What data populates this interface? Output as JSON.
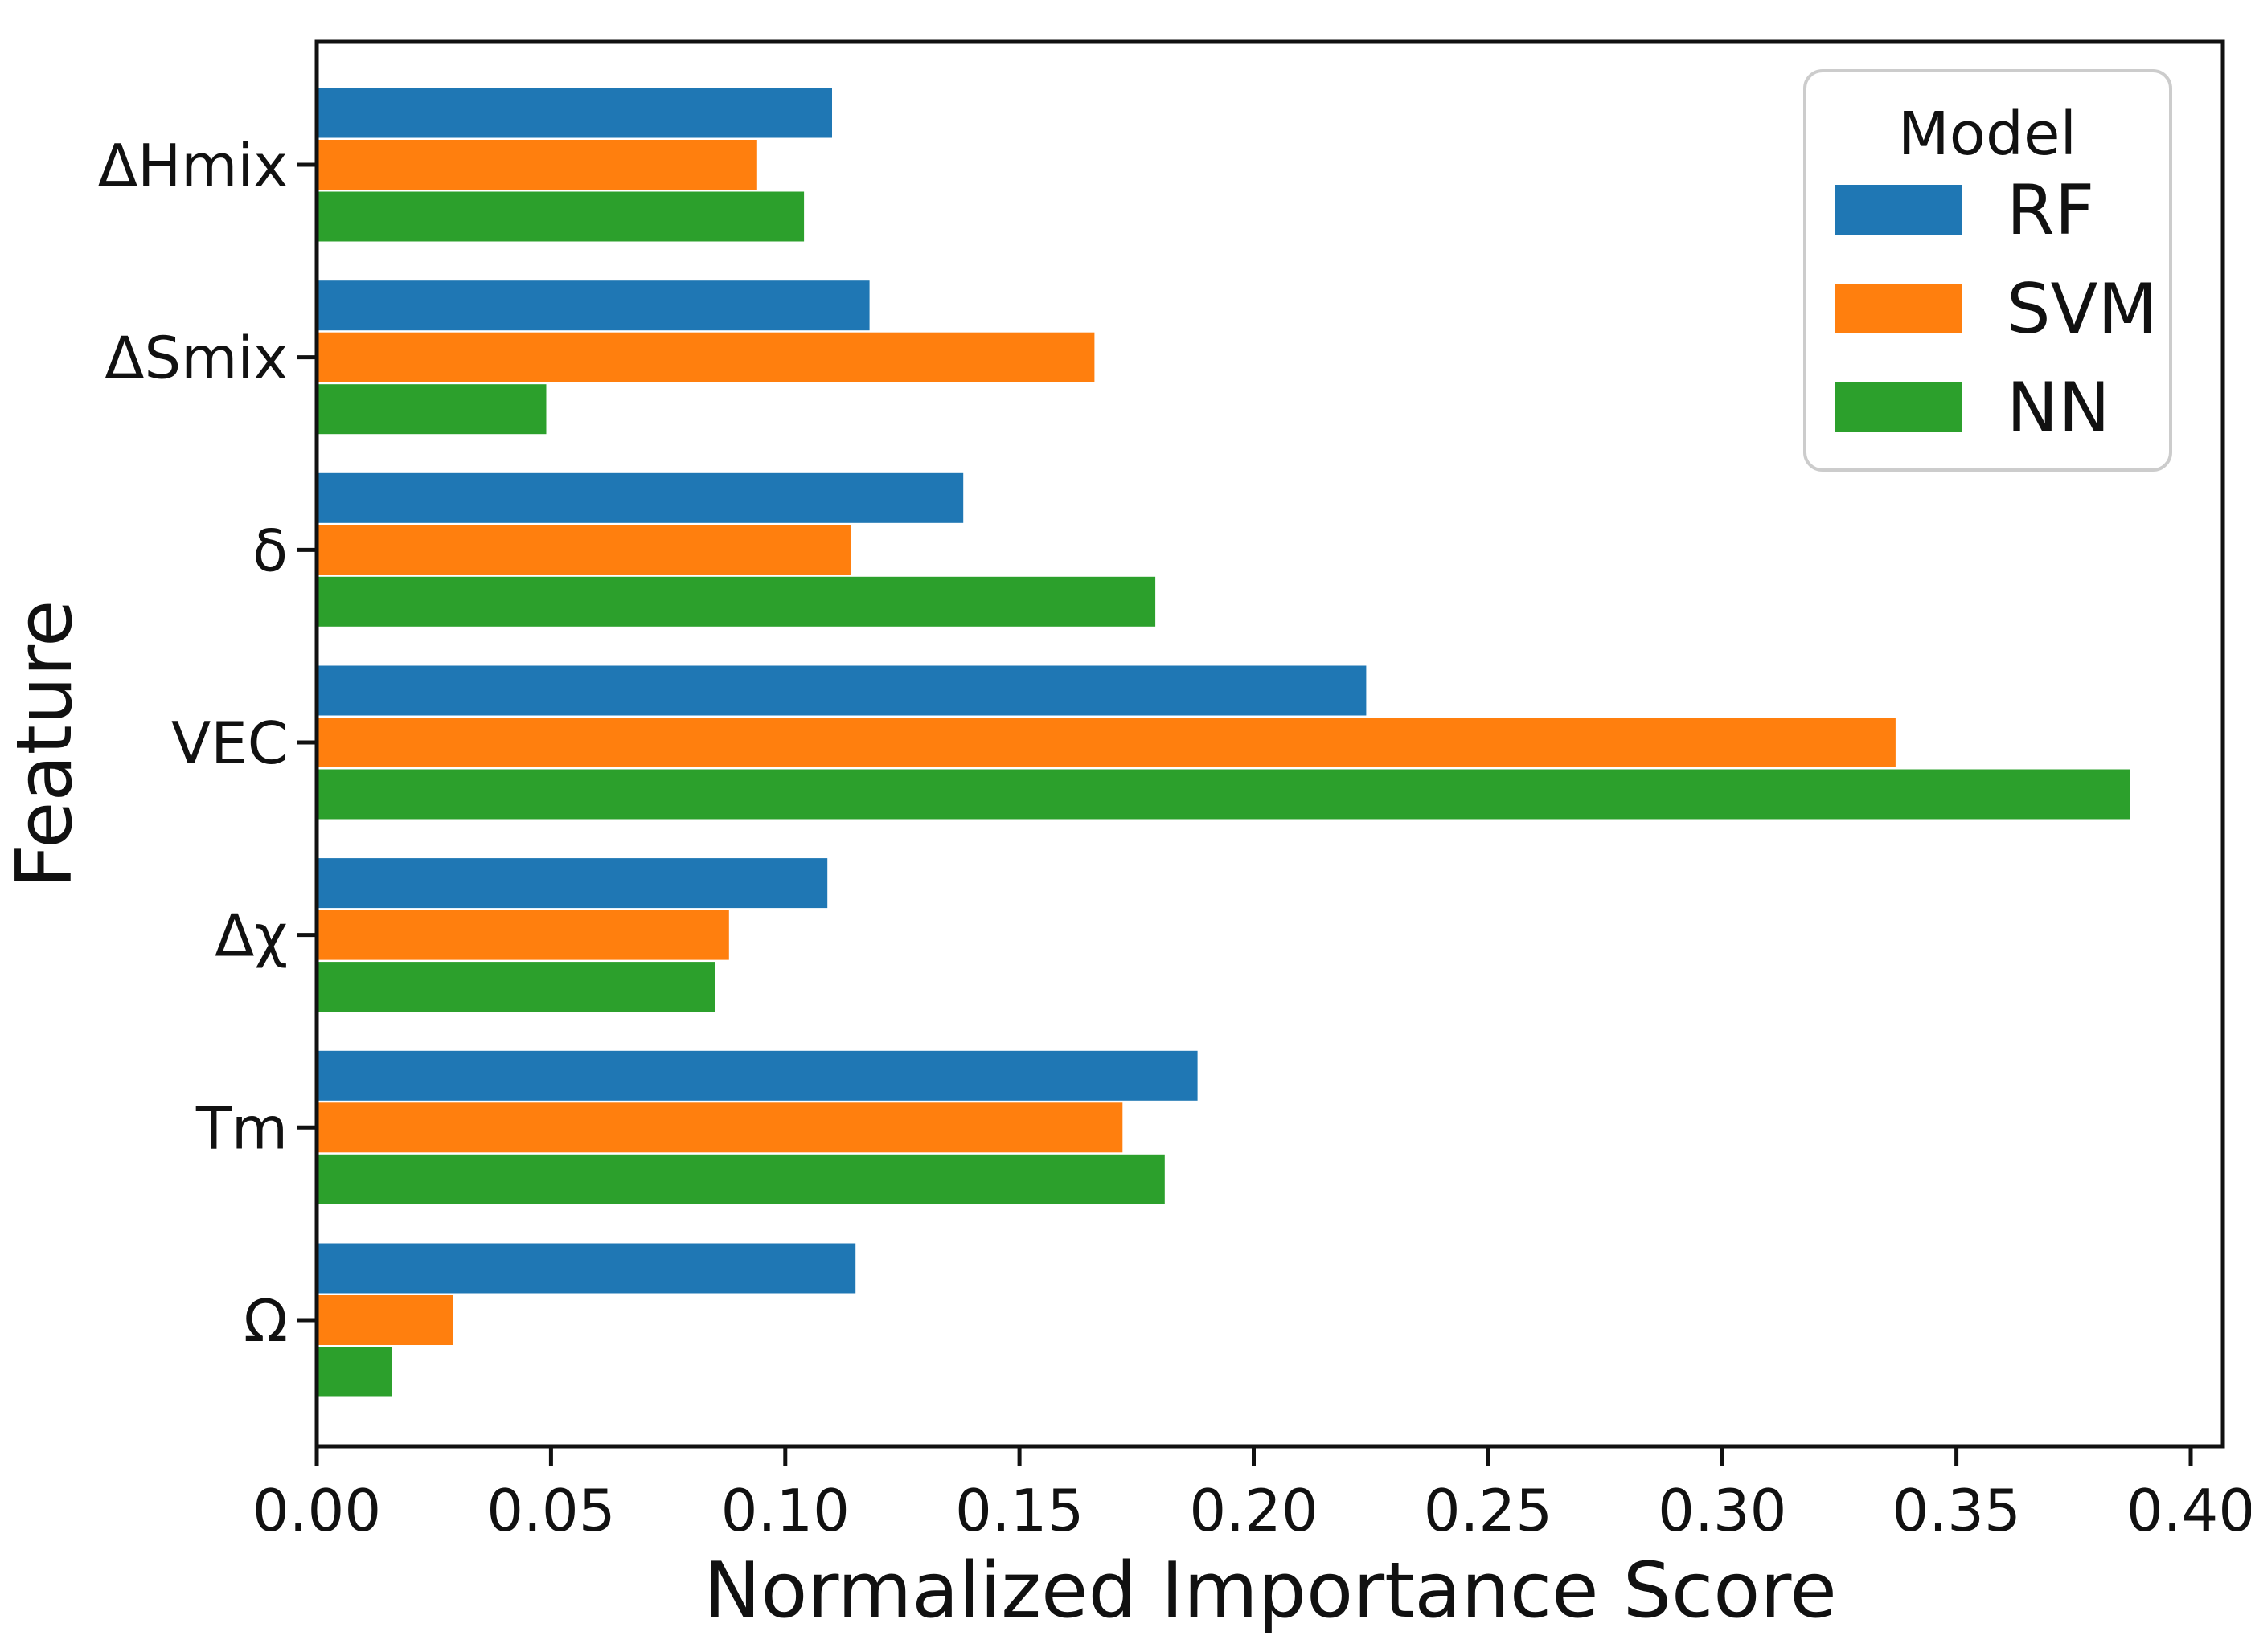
{
  "chart_data": {
    "type": "bar",
    "orientation": "horizontal",
    "title": "",
    "xlabel": "Normalized Importance Score",
    "ylabel": "Feature",
    "categories": [
      "ΔHmix",
      "ΔSmix",
      "δ",
      "VEC",
      "Δχ",
      "Tm",
      "Ω"
    ],
    "series": [
      {
        "name": "RF",
        "color": "#1f77b4",
        "values": [
          0.11,
          0.118,
          0.138,
          0.224,
          0.109,
          0.188,
          0.115
        ]
      },
      {
        "name": "SVM",
        "color": "#ff7f0e",
        "values": [
          0.094,
          0.166,
          0.114,
          0.337,
          0.088,
          0.172,
          0.029
        ]
      },
      {
        "name": "NN",
        "color": "#2ca02c",
        "values": [
          0.104,
          0.049,
          0.179,
          0.387,
          0.085,
          0.181,
          0.016
        ]
      }
    ],
    "x_ticks": [
      "0.00",
      "0.05",
      "0.10",
      "0.15",
      "0.20",
      "0.25",
      "0.30",
      "0.35",
      "0.40"
    ],
    "x_tick_values": [
      0.0,
      0.05,
      0.1,
      0.15,
      0.2,
      0.25,
      0.3,
      0.35,
      0.4
    ],
    "xlim": [
      0,
      0.407
    ],
    "grid": false,
    "legend": {
      "title": "Model",
      "entries": [
        "RF",
        "SVM",
        "NN"
      ],
      "position": "upper right"
    },
    "colors": {
      "spine": "#111111",
      "background": "#ffffff",
      "legend_border": "#cccccc"
    }
  }
}
